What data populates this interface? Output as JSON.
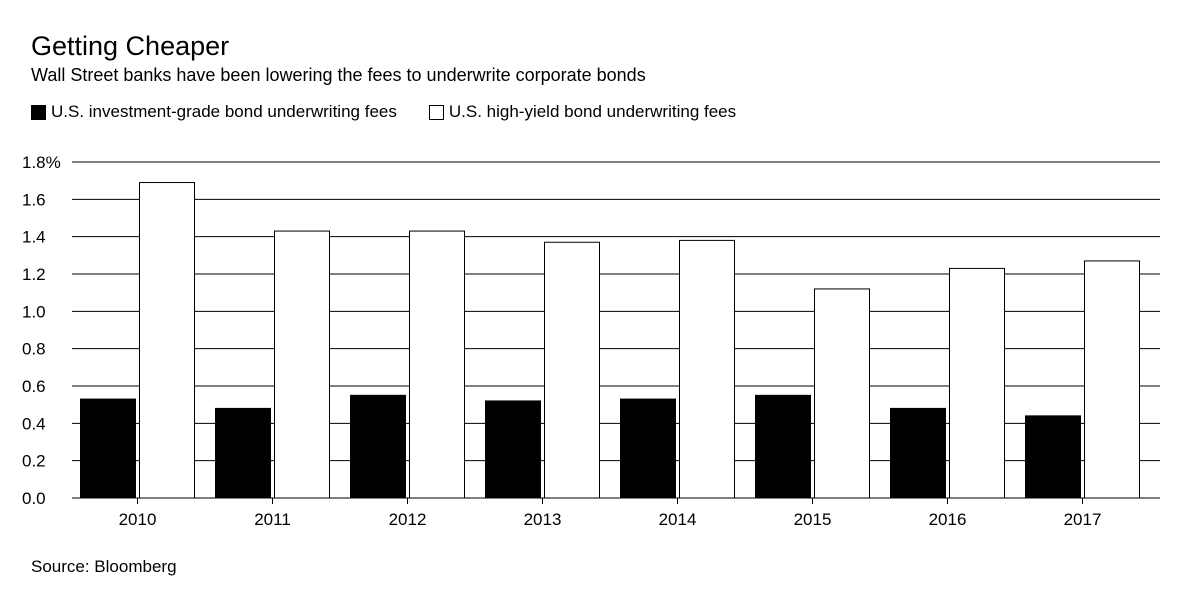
{
  "chart_data": {
    "type": "bar",
    "title": "Getting Cheaper",
    "subtitle": "Wall Street banks have been lowering the fees to underwrite corporate bonds",
    "source": "Source: Bloomberg",
    "categories": [
      "2010",
      "2011",
      "2012",
      "2013",
      "2014",
      "2015",
      "2016",
      "2017"
    ],
    "series": [
      {
        "name": "U.S. investment-grade bond underwriting fees",
        "color": "#000000",
        "values": [
          0.53,
          0.48,
          0.55,
          0.52,
          0.53,
          0.55,
          0.48,
          0.44
        ]
      },
      {
        "name": "U.S. high-yield bond underwriting fees",
        "color": "#ffffff",
        "values": [
          1.69,
          1.43,
          1.43,
          1.37,
          1.38,
          1.12,
          1.23,
          1.27
        ]
      }
    ],
    "ylim": [
      0,
      1.8
    ],
    "yticks": [
      0,
      0.2,
      0.4,
      0.6,
      0.8,
      1.0,
      1.2,
      1.4,
      1.6,
      1.8
    ],
    "ytick_labels": [
      "0.0",
      "0.2",
      "0.4",
      "0.6",
      "0.8",
      "1.0",
      "1.2",
      "1.4",
      "1.6",
      "1.8%"
    ],
    "xlabel": "",
    "ylabel": "",
    "grid": true,
    "legend_position": "top-left"
  }
}
